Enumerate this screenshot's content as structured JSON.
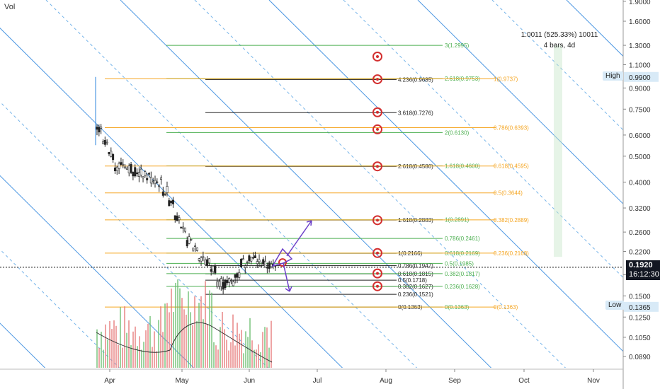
{
  "volume_label": "Vol",
  "stats": {
    "line1": "1.0011 (525.33%) 10011",
    "line2": "4 bars, 4d"
  },
  "badges": {
    "high_label": "High",
    "high_value": "0.9900",
    "low_label": "Low",
    "low_value": "0.1365"
  },
  "current_price": {
    "price": "0.1920",
    "countdown": "16:12:30"
  },
  "colors": {
    "channel": "#2e86de",
    "channel_dashed": "#5fa8e6",
    "orange": "#f5a623",
    "green": "#4caf50",
    "black": "#222222",
    "red_target": "#d32f2f",
    "purple": "#6a3fc8",
    "candle": "#222222",
    "vol_green": "#66bb6a",
    "vol_red": "#e57373"
  },
  "chart_data": {
    "type": "candlestick",
    "y_axis": {
      "scale": "log",
      "range": [
        0.075,
        1.9
      ],
      "ticks": [
        "1.9000",
        "1.6000",
        "1.3000",
        "1.1000",
        "0.9000",
        "0.7500",
        "0.6000",
        "0.5000",
        "0.4000",
        "0.3200",
        "0.2600",
        "0.2200",
        "0.1800",
        "0.1500",
        "0.1250",
        "0.1050",
        "0.0890"
      ]
    },
    "x_axis": {
      "ticks": [
        "Apr",
        "May",
        "Jun",
        "Jul",
        "Aug",
        "Sep",
        "Oct",
        "Nov"
      ]
    },
    "price_path": [
      0.62,
      0.55,
      0.5,
      0.46,
      0.47,
      0.45,
      0.44,
      0.43,
      0.42,
      0.41,
      0.4,
      0.37,
      0.34,
      0.3,
      0.26,
      0.24,
      0.23,
      0.21,
      0.2,
      0.19,
      0.17,
      0.165,
      0.17,
      0.18,
      0.2,
      0.21,
      0.205,
      0.2,
      0.195,
      0.192
    ],
    "fib_levels": [
      {
        "label": "3(1.2995)",
        "value": 1.2995,
        "color": "green"
      },
      {
        "label": "4.236(0.9685)",
        "value": 0.9685,
        "color": "black"
      },
      {
        "label": "2.618(0.9753)",
        "value": 0.9753,
        "color": "green"
      },
      {
        "label": "1(0.9737)",
        "value": 0.9737,
        "color": "orange"
      },
      {
        "label": "3.618(0.7276)",
        "value": 0.7276,
        "color": "black"
      },
      {
        "label": "0.786(0.6393)",
        "value": 0.6393,
        "color": "orange"
      },
      {
        "label": "2(0.6130)",
        "value": 0.613,
        "color": "green"
      },
      {
        "label": "2.618(0.4580)",
        "value": 0.458,
        "color": "black"
      },
      {
        "label": "1.618(0.4600)",
        "value": 0.46,
        "color": "green"
      },
      {
        "label": "0.618(0.4595)",
        "value": 0.4595,
        "color": "orange"
      },
      {
        "label": "0.5(0.3644)",
        "value": 0.3644,
        "color": "orange"
      },
      {
        "label": "1.618(0.2883)",
        "value": 0.2883,
        "color": "black"
      },
      {
        "label": "1(0.2891)",
        "value": 0.2891,
        "color": "green"
      },
      {
        "label": "0.382(0.2889)",
        "value": 0.2889,
        "color": "orange"
      },
      {
        "label": "0.786(0.2461)",
        "value": 0.2461,
        "color": "green"
      },
      {
        "label": "1(0.2166)",
        "value": 0.2166,
        "color": "black"
      },
      {
        "label": "0.618(0.2169)",
        "value": 0.2169,
        "color": "green"
      },
      {
        "label": "0.236(0.2168)",
        "value": 0.2168,
        "color": "orange"
      },
      {
        "label": "0.786(0.1947)",
        "value": 0.1947,
        "color": "black"
      },
      {
        "label": "0.5(0.1985)",
        "value": 0.1985,
        "color": "green"
      },
      {
        "label": "0.618(0.1815)",
        "value": 0.1815,
        "color": "black"
      },
      {
        "label": "0.382(0.1817)",
        "value": 0.1817,
        "color": "green"
      },
      {
        "label": "0.5(0.1718)",
        "value": 0.1718,
        "color": "black"
      },
      {
        "label": "0.382(0.1627)",
        "value": 0.1627,
        "color": "black"
      },
      {
        "label": "0.236(0.1628)",
        "value": 0.1628,
        "color": "green"
      },
      {
        "label": "0.236(0.1521)",
        "value": 0.1521,
        "color": "black"
      },
      {
        "label": "0(0.1363)",
        "value": 0.1363,
        "color": "black"
      },
      {
        "label": "0(0.1363)",
        "value": 0.1363,
        "color": "green"
      },
      {
        "label": "0(0.1363)",
        "value": 0.1363,
        "color": "orange"
      }
    ],
    "targets": [
      1.18,
      0.97,
      0.73,
      0.63,
      0.458,
      0.288,
      0.217,
      0.182,
      0.163
    ]
  }
}
